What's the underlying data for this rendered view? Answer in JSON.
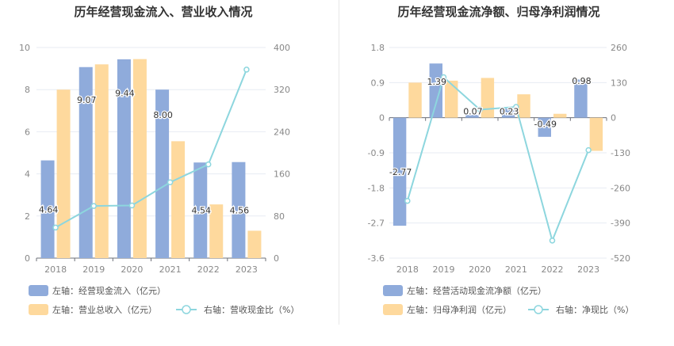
{
  "colors": {
    "bar_primary": "#8fabdb",
    "bar_secondary": "#fed99d",
    "line": "#8dd6de",
    "axis_text": "#888888",
    "grid": "#e7ebf3",
    "label_text": "#333333"
  },
  "chart_data": [
    {
      "type": "bar",
      "title": "历年经营现金流入、营业收入情况",
      "categories": [
        "2018",
        "2019",
        "2020",
        "2021",
        "2022",
        "2023"
      ],
      "left_axis": {
        "ylim": [
          0,
          10
        ],
        "ticks": [
          "0",
          "2",
          "4",
          "6",
          "8",
          "10"
        ]
      },
      "right_axis": {
        "ylim": [
          0,
          400
        ],
        "ticks": [
          "0",
          "80",
          "160",
          "240",
          "320",
          "400"
        ]
      },
      "series": [
        {
          "name": "左轴：经营现金流入（亿元）",
          "kind": "bar",
          "axis": "left",
          "color": "#8fabdb",
          "values": [
            4.64,
            9.07,
            9.44,
            8.0,
            4.54,
            4.56
          ],
          "labels": [
            "4.64",
            "9.07",
            "9.44",
            "8.00",
            "4.54",
            "4.56"
          ]
        },
        {
          "name": "左轴：营业总收入（亿元）",
          "kind": "bar",
          "axis": "left",
          "color": "#fed99d",
          "values": [
            8.0,
            9.2,
            9.45,
            5.55,
            2.55,
            1.3
          ]
        },
        {
          "name": "右轴：营收现金比（%）",
          "kind": "line",
          "axis": "right",
          "color": "#8dd6de",
          "values": [
            58,
            99,
            100,
            144,
            178,
            358
          ]
        }
      ]
    },
    {
      "type": "bar",
      "title": "历年经营现金流净额、归母净利润情况",
      "categories": [
        "2018",
        "2019",
        "2020",
        "2021",
        "2022",
        "2023"
      ],
      "left_axis": {
        "ylim": [
          -3.6,
          1.8
        ],
        "ticks": [
          "-3.6",
          "-2.7",
          "-1.8",
          "-0.9",
          "0",
          "0.9",
          "1.8"
        ]
      },
      "right_axis": {
        "ylim": [
          -520,
          260
        ],
        "ticks": [
          "-520",
          "-390",
          "-260",
          "-130",
          "0",
          "130",
          "260"
        ]
      },
      "series": [
        {
          "name": "左轴：经营活动现金流净额（亿元）",
          "kind": "bar",
          "axis": "left",
          "color": "#8fabdb",
          "values": [
            -2.77,
            1.39,
            0.07,
            0.23,
            -0.49,
            0.98
          ],
          "labels": [
            "-2.77",
            "1.39",
            "0.07",
            "0.23",
            "-0.49",
            "0.98"
          ]
        },
        {
          "name": "左轴：归母净利润（亿元）",
          "kind": "bar",
          "axis": "left",
          "color": "#fed99d",
          "values": [
            0.9,
            0.95,
            1.02,
            0.6,
            0.1,
            -0.85
          ]
        },
        {
          "name": "右轴：净现比（%）",
          "kind": "line",
          "axis": "right",
          "color": "#8dd6de",
          "values": [
            -308,
            150,
            30,
            40,
            -455,
            -120
          ]
        }
      ]
    }
  ]
}
